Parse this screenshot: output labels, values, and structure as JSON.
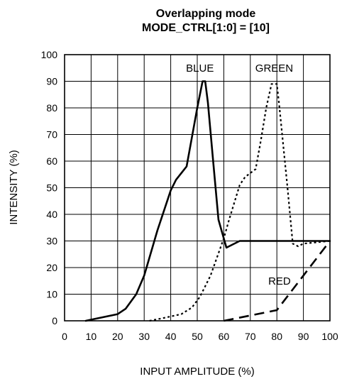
{
  "chart_data": {
    "type": "line",
    "title": "Overlapping mode",
    "subtitle": "MODE_CTRL[1:0] = [10]",
    "xlabel": "INPUT AMPLITUDE (%)",
    "ylabel": "INTENSITY (%)",
    "xlim": [
      0,
      100
    ],
    "ylim": [
      0,
      100
    ],
    "xticks": [
      0,
      10,
      20,
      30,
      40,
      50,
      60,
      70,
      80,
      90,
      100
    ],
    "yticks": [
      0,
      10,
      20,
      30,
      40,
      50,
      60,
      70,
      80,
      90,
      100
    ],
    "grid": true,
    "series": [
      {
        "name": "BLUE",
        "line_style": "solid",
        "label_at": [
          51,
          95
        ],
        "points": [
          [
            8,
            0
          ],
          [
            20,
            2.5
          ],
          [
            23,
            4.5
          ],
          [
            27,
            10
          ],
          [
            30,
            17
          ],
          [
            35,
            34
          ],
          [
            40,
            49
          ],
          [
            42,
            53
          ],
          [
            46,
            58
          ],
          [
            48,
            69
          ],
          [
            50,
            80
          ],
          [
            52,
            90
          ],
          [
            53,
            90
          ],
          [
            54,
            82
          ],
          [
            56,
            60
          ],
          [
            58,
            38
          ],
          [
            61,
            27.5
          ],
          [
            62,
            28
          ],
          [
            66,
            30
          ],
          [
            100,
            30
          ]
        ]
      },
      {
        "name": "GREEN",
        "line_style": "dotted",
        "label_at": [
          79,
          95
        ],
        "points": [
          [
            32,
            0
          ],
          [
            37,
            1
          ],
          [
            44,
            2.5
          ],
          [
            48,
            5
          ],
          [
            51,
            9
          ],
          [
            55,
            17
          ],
          [
            60,
            31
          ],
          [
            62,
            38
          ],
          [
            66,
            51
          ],
          [
            68,
            54
          ],
          [
            72,
            57
          ],
          [
            74,
            68
          ],
          [
            76,
            80
          ],
          [
            78,
            89
          ],
          [
            80,
            89
          ],
          [
            81,
            80
          ],
          [
            84,
            50
          ],
          [
            86,
            29
          ],
          [
            88,
            28
          ],
          [
            90,
            29
          ],
          [
            100,
            30
          ]
        ]
      },
      {
        "name": "RED",
        "line_style": "dashed",
        "label_at": [
          81,
          15
        ],
        "points": [
          [
            60,
            0
          ],
          [
            80,
            4
          ],
          [
            100,
            30
          ]
        ]
      }
    ]
  }
}
